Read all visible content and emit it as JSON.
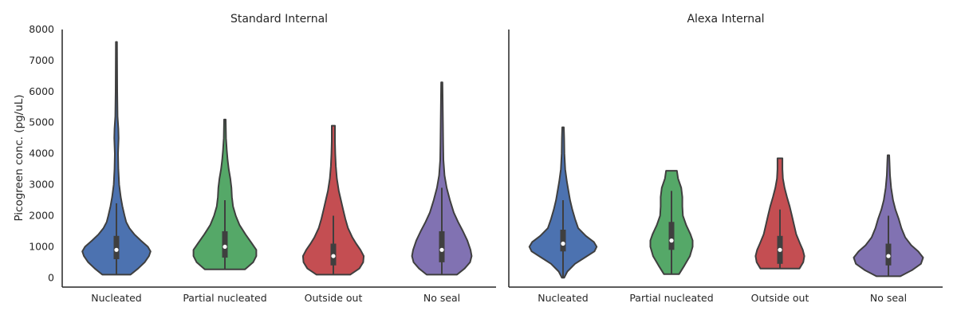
{
  "chart_data": {
    "type": "violin",
    "ylabel": "Picogreen conc. (pg/uL)",
    "ylim": [
      -300,
      8000
    ],
    "yticks": [
      0,
      1000,
      2000,
      3000,
      4000,
      5000,
      6000,
      7000,
      8000
    ],
    "categories": [
      "Nucleated",
      "Partial nucleated",
      "Outside out",
      "No seal"
    ],
    "colors": [
      "#4c72b0",
      "#55a868",
      "#c44e52",
      "#8172b2"
    ],
    "grid": false,
    "panels": [
      {
        "title": "Standard Internal",
        "violins": [
          {
            "category": "Nucleated",
            "min": 100,
            "max": 7600,
            "median": 900,
            "q1": 600,
            "q3": 1350,
            "whisker_low": 100,
            "whisker_high": 2400,
            "density": [
              [
                100,
                0.26
              ],
              [
                300,
                0.4
              ],
              [
                500,
                0.52
              ],
              [
                700,
                0.6
              ],
              [
                850,
                0.63
              ],
              [
                1000,
                0.58
              ],
              [
                1200,
                0.45
              ],
              [
                1400,
                0.33
              ],
              [
                1600,
                0.24
              ],
              [
                1800,
                0.18
              ],
              [
                2000,
                0.15
              ],
              [
                2300,
                0.11
              ],
              [
                2600,
                0.08
              ],
              [
                3000,
                0.05
              ],
              [
                3500,
                0.035
              ],
              [
                4000,
                0.03
              ],
              [
                4500,
                0.04
              ],
              [
                4800,
                0.035
              ],
              [
                5200,
                0.02
              ],
              [
                6000,
                0.015
              ],
              [
                7000,
                0.012
              ],
              [
                7600,
                0.01
              ]
            ]
          },
          {
            "category": "Partial nucleated",
            "min": 270,
            "max": 5100,
            "median": 1000,
            "q1": 650,
            "q3": 1500,
            "whisker_low": 270,
            "whisker_high": 2500,
            "density": [
              [
                270,
                0.37
              ],
              [
                500,
                0.52
              ],
              [
                700,
                0.58
              ],
              [
                900,
                0.58
              ],
              [
                1100,
                0.5
              ],
              [
                1400,
                0.38
              ],
              [
                1700,
                0.27
              ],
              [
                2000,
                0.2
              ],
              [
                2300,
                0.15
              ],
              [
                2600,
                0.13
              ],
              [
                2900,
                0.12
              ],
              [
                3200,
                0.1
              ],
              [
                3500,
                0.07
              ],
              [
                3800,
                0.05
              ],
              [
                4100,
                0.035
              ],
              [
                4500,
                0.02
              ],
              [
                5100,
                0.015
              ]
            ]
          },
          {
            "category": "Outside out",
            "min": 100,
            "max": 4900,
            "median": 700,
            "q1": 400,
            "q3": 1100,
            "whisker_low": 100,
            "whisker_high": 2000,
            "density": [
              [
                100,
                0.31
              ],
              [
                300,
                0.48
              ],
              [
                500,
                0.55
              ],
              [
                700,
                0.56
              ],
              [
                900,
                0.5
              ],
              [
                1100,
                0.42
              ],
              [
                1300,
                0.35
              ],
              [
                1600,
                0.27
              ],
              [
                1900,
                0.22
              ],
              [
                2200,
                0.18
              ],
              [
                2500,
                0.14
              ],
              [
                2800,
                0.1
              ],
              [
                3200,
                0.065
              ],
              [
                3600,
                0.045
              ],
              [
                4000,
                0.035
              ],
              [
                4400,
                0.03
              ],
              [
                4900,
                0.03
              ]
            ]
          },
          {
            "category": "No seal",
            "min": 100,
            "max": 6300,
            "median": 900,
            "q1": 500,
            "q3": 1500,
            "whisker_low": 100,
            "whisker_high": 2900,
            "density": [
              [
                100,
                0.28
              ],
              [
                300,
                0.42
              ],
              [
                500,
                0.52
              ],
              [
                700,
                0.55
              ],
              [
                900,
                0.53
              ],
              [
                1200,
                0.47
              ],
              [
                1500,
                0.39
              ],
              [
                1800,
                0.3
              ],
              [
                2100,
                0.22
              ],
              [
                2500,
                0.15
              ],
              [
                2900,
                0.09
              ],
              [
                3300,
                0.05
              ],
              [
                3800,
                0.03
              ],
              [
                4300,
                0.025
              ],
              [
                5000,
                0.02
              ],
              [
                6300,
                0.012
              ]
            ]
          }
        ]
      },
      {
        "title": "Alexa Internal",
        "violins": [
          {
            "category": "Nucleated",
            "min": 0,
            "max": 4850,
            "median": 1100,
            "q1": 850,
            "q3": 1550,
            "whisker_low": 0,
            "whisker_high": 2500,
            "density": [
              [
                0,
                0.02
              ],
              [
                200,
                0.08
              ],
              [
                450,
                0.22
              ],
              [
                650,
                0.4
              ],
              [
                850,
                0.58
              ],
              [
                1000,
                0.62
              ],
              [
                1150,
                0.57
              ],
              [
                1350,
                0.42
              ],
              [
                1600,
                0.28
              ],
              [
                1900,
                0.22
              ],
              [
                2200,
                0.17
              ],
              [
                2500,
                0.13
              ],
              [
                2800,
                0.1
              ],
              [
                3100,
                0.07
              ],
              [
                3500,
                0.04
              ],
              [
                4000,
                0.025
              ],
              [
                4500,
                0.02
              ],
              [
                4850,
                0.015
              ]
            ]
          },
          {
            "category": "Partial nucleated",
            "min": 120,
            "max": 3450,
            "median": 1200,
            "q1": 900,
            "q3": 1800,
            "whisker_low": 120,
            "whisker_high": 2800,
            "density": [
              [
                120,
                0.14
              ],
              [
                400,
                0.24
              ],
              [
                700,
                0.34
              ],
              [
                1000,
                0.39
              ],
              [
                1200,
                0.39
              ],
              [
                1400,
                0.35
              ],
              [
                1700,
                0.27
              ],
              [
                2000,
                0.21
              ],
              [
                2300,
                0.2
              ],
              [
                2600,
                0.2
              ],
              [
                2900,
                0.18
              ],
              [
                3200,
                0.12
              ],
              [
                3450,
                0.1
              ]
            ]
          },
          {
            "category": "Outside out",
            "min": 300,
            "max": 3850,
            "median": 900,
            "q1": 450,
            "q3": 1350,
            "whisker_low": 300,
            "whisker_high": 2200,
            "density": [
              [
                300,
                0.36
              ],
              [
                500,
                0.43
              ],
              [
                700,
                0.45
              ],
              [
                900,
                0.42
              ],
              [
                1100,
                0.37
              ],
              [
                1400,
                0.3
              ],
              [
                1700,
                0.26
              ],
              [
                2000,
                0.22
              ],
              [
                2300,
                0.18
              ],
              [
                2600,
                0.13
              ],
              [
                2900,
                0.085
              ],
              [
                3200,
                0.055
              ],
              [
                3500,
                0.045
              ],
              [
                3850,
                0.045
              ]
            ]
          },
          {
            "category": "No seal",
            "min": 50,
            "max": 3950,
            "median": 700,
            "q1": 400,
            "q3": 1100,
            "whisker_low": 50,
            "whisker_high": 2000,
            "density": [
              [
                50,
                0.22
              ],
              [
                250,
                0.44
              ],
              [
                450,
                0.6
              ],
              [
                650,
                0.64
              ],
              [
                850,
                0.55
              ],
              [
                1050,
                0.42
              ],
              [
                1300,
                0.31
              ],
              [
                1600,
                0.24
              ],
              [
                1900,
                0.19
              ],
              [
                2200,
                0.13
              ],
              [
                2500,
                0.085
              ],
              [
                2900,
                0.05
              ],
              [
                3300,
                0.03
              ],
              [
                3700,
                0.02
              ],
              [
                3950,
                0.015
              ]
            ]
          }
        ]
      }
    ]
  }
}
